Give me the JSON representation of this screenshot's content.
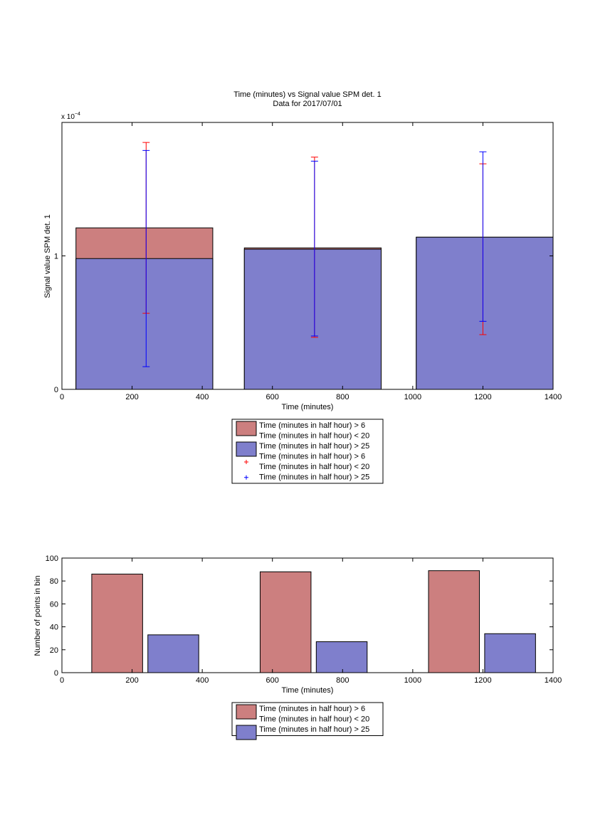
{
  "chart_data": [
    {
      "type": "bar",
      "title": "Time (minutes) vs Signal value SPM det. 1",
      "subtitle": "Data for 2017/07/01",
      "xlabel": "Time (minutes)",
      "ylabel": "Signal value SPM det. 1",
      "scale_label_base": "x 10",
      "scale_label_exp": "−4",
      "xlim": [
        0,
        1400
      ],
      "ylim": [
        0,
        2.0
      ],
      "x_ticks": [
        0,
        200,
        400,
        600,
        800,
        1000,
        1200,
        1400
      ],
      "y_ticks": [
        0,
        1
      ],
      "y_tick_labels": [
        "0",
        "1"
      ],
      "bar_ranges": [
        [
          40,
          430
        ],
        [
          520,
          910
        ],
        [
          1010,
          1400
        ]
      ],
      "series": [
        {
          "name": "Time (minutes in half hour) > 6\nTime (minutes in half hour) < 20",
          "color": "#cc7f7f",
          "values": [
            1.21,
            1.06,
            1.14
          ]
        },
        {
          "name": "Time (minutes in half hour) > 25",
          "color": "#7f7fcc",
          "values": [
            0.98,
            1.05,
            1.14
          ]
        }
      ],
      "errorbars": [
        {
          "name": "Time (minutes in half hour) > 6\nTime (minutes in half hour) < 20",
          "color": "#ff0000",
          "x": [
            240,
            720,
            1200
          ],
          "low": [
            0.57,
            0.39,
            0.41
          ],
          "high": [
            1.85,
            1.74,
            1.69
          ]
        },
        {
          "name": "Time (minutes in half hour) > 25",
          "color": "#0000ff",
          "x": [
            240,
            720,
            1200
          ],
          "low": [
            0.17,
            0.4,
            0.51
          ],
          "high": [
            1.79,
            1.71,
            1.78
          ]
        }
      ],
      "legend": {
        "placement": "below",
        "entries": [
          {
            "kind": "patch",
            "color": "#cc7f7f",
            "lines": [
              "Time (minutes in half hour) > 6",
              "Time (minutes in half hour) < 20"
            ]
          },
          {
            "kind": "patch",
            "color": "#7f7fcc",
            "lines": [
              "Time (minutes in half hour) > 25"
            ]
          },
          {
            "kind": "marker",
            "color": "#ff0000",
            "lines": [
              "Time (minutes in half hour) > 6",
              "Time (minutes in half hour) < 20"
            ]
          },
          {
            "kind": "marker",
            "color": "#0000ff",
            "lines": [
              "Time (minutes in half hour) > 25"
            ]
          }
        ]
      }
    },
    {
      "type": "bar",
      "title": "",
      "xlabel": "Time (minutes)",
      "ylabel": "Number of points in bin",
      "xlim": [
        0,
        1400
      ],
      "ylim": [
        0,
        100
      ],
      "x_ticks": [
        0,
        200,
        400,
        600,
        800,
        1000,
        1200,
        1400
      ],
      "y_ticks": [
        0,
        20,
        40,
        60,
        80,
        100
      ],
      "series": [
        {
          "name": "Time (minutes in half hour) > 6\nTime (minutes in half hour) < 20",
          "color": "#cc7f7f",
          "bars": [
            {
              "x0": 85,
              "x1": 230,
              "value": 86
            },
            {
              "x0": 565,
              "x1": 710,
              "value": 88
            },
            {
              "x0": 1045,
              "x1": 1190,
              "value": 89
            }
          ]
        },
        {
          "name": "Time (minutes in half hour) > 25",
          "color": "#7f7fcc",
          "bars": [
            {
              "x0": 245,
              "x1": 390,
              "value": 33
            },
            {
              "x0": 725,
              "x1": 870,
              "value": 27
            },
            {
              "x0": 1205,
              "x1": 1350,
              "value": 34
            }
          ]
        }
      ],
      "legend": {
        "placement": "below",
        "entries": [
          {
            "kind": "patch",
            "color": "#cc7f7f",
            "lines": [
              "Time (minutes in half hour) > 6",
              "Time (minutes in half hour) < 20"
            ]
          },
          {
            "kind": "patch",
            "color": "#7f7fcc",
            "lines": [
              "Time (minutes in half hour) > 25"
            ]
          }
        ]
      }
    }
  ]
}
